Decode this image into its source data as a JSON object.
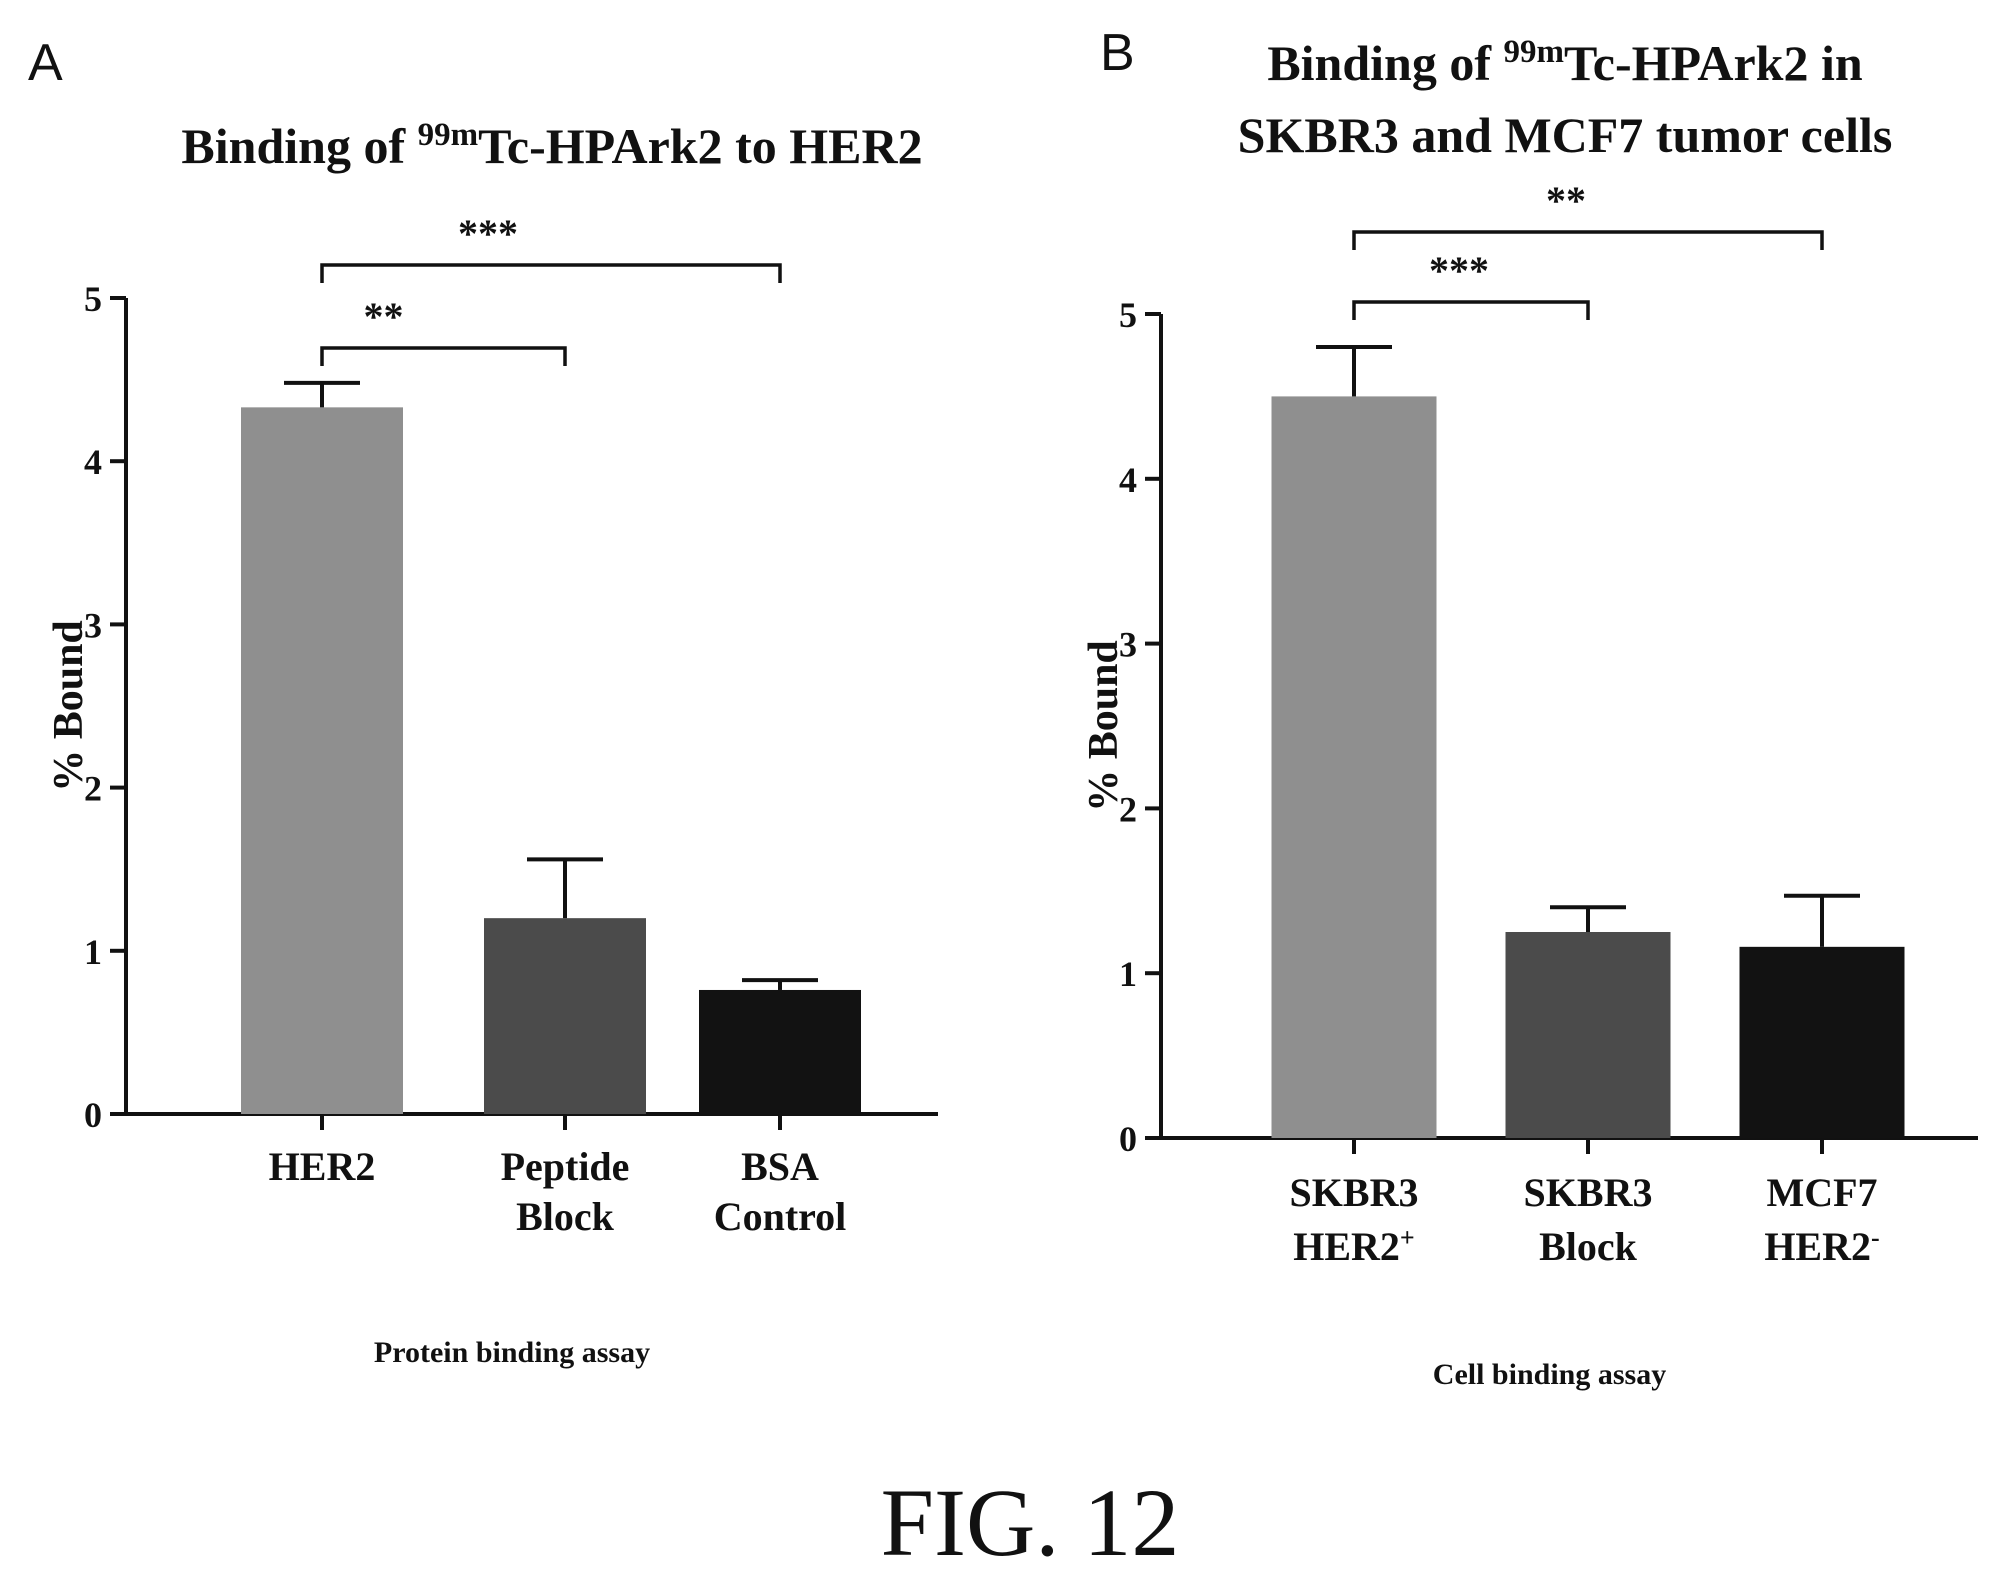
{
  "figure": {
    "caption": "FIG. 12",
    "colors": {
      "ink": "#111111",
      "bar_light": "#8f8f8f",
      "bar_mid": "#4b4b4b",
      "bar_dark": "#121212"
    }
  },
  "chart_data": [
    {
      "panel_label": "A",
      "type": "bar",
      "title_parts": [
        "Binding of ",
        "99m",
        "Tc-HPArk2 to HER2"
      ],
      "ylabel": "% Bound",
      "xlabel": "Protein binding assay",
      "ylim": [
        0,
        5
      ],
      "yticks": [
        0,
        1,
        2,
        3,
        4,
        5
      ],
      "grid": false,
      "categories": [
        {
          "lines": [
            [
              "HER2",
              ""
            ]
          ]
        },
        {
          "lines": [
            [
              "Peptide",
              ""
            ],
            [
              "Block",
              ""
            ]
          ]
        },
        {
          "lines": [
            [
              "BSA",
              ""
            ],
            [
              "Control",
              ""
            ]
          ]
        }
      ],
      "values": [
        4.33,
        1.2,
        0.76
      ],
      "errors": [
        0.15,
        0.36,
        0.06
      ],
      "bar_colors": [
        "#8f8f8f",
        "#4b4b4b",
        "#121212"
      ],
      "significance": [
        {
          "from": 0,
          "to": 1,
          "label": "**"
        },
        {
          "from": 0,
          "to": 2,
          "label": "***"
        }
      ]
    },
    {
      "panel_label": "B",
      "type": "bar",
      "title_parts": [
        "Binding of ",
        "99m",
        "Tc-HPArk2 in"
      ],
      "title_line2": "SKBR3 and MCF7 tumor cells",
      "ylabel": "% Bound",
      "xlabel": "Cell binding assay",
      "ylim": [
        0,
        5
      ],
      "yticks": [
        0,
        1,
        2,
        3,
        4,
        5
      ],
      "grid": false,
      "categories": [
        {
          "lines": [
            [
              "SKBR3",
              ""
            ],
            [
              "HER2",
              "+"
            ]
          ]
        },
        {
          "lines": [
            [
              "SKBR3",
              ""
            ],
            [
              "Block",
              ""
            ]
          ]
        },
        {
          "lines": [
            [
              "MCF7",
              ""
            ],
            [
              "HER2",
              "-"
            ]
          ]
        }
      ],
      "values": [
        4.5,
        1.25,
        1.16
      ],
      "errors": [
        0.3,
        0.15,
        0.31
      ],
      "bar_colors": [
        "#8f8f8f",
        "#4b4b4b",
        "#121212"
      ],
      "significance": [
        {
          "from": 0,
          "to": 1,
          "label": "***"
        },
        {
          "from": 0,
          "to": 2,
          "label": "**"
        }
      ]
    }
  ]
}
